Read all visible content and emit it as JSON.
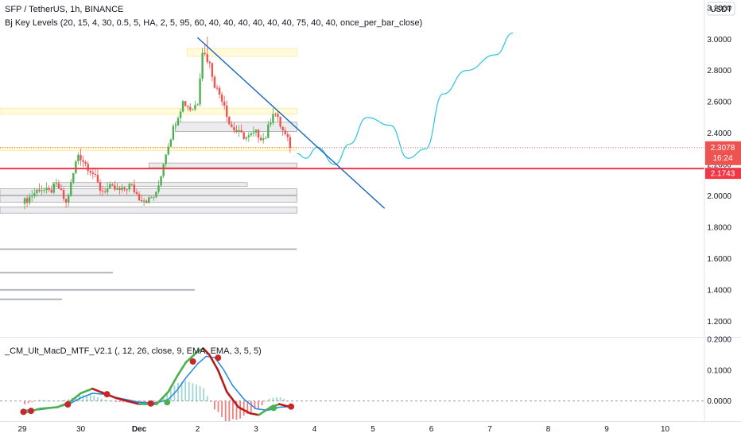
{
  "header": {
    "symbol_line": "SFP / TetherUS, 1h, BINANCE",
    "indicator_line": "Bj Key Levels (20, 15, 4, 30, 0.5, 5, HA, 2, 5, 95, 60, 40, 40, 40, 40, 40, 40, 75, 40, 40, once_per_bar_close)",
    "macd_label": "_CM_Ult_MacD_MTF_V2.1 (, 12, 26, close, 9, EMA, EMA, 3, 5, 5)",
    "currency": "USDT"
  },
  "colors": {
    "up": "#26a69a",
    "up_body": "#4caf50",
    "down": "#ef5350",
    "trendline": "#1565c0",
    "projection": "#26c6da",
    "key_level": "#f23645",
    "macd_fast": "#4caf50",
    "macd_slow": "#1e88e5",
    "macd_down": "#b71c1c"
  },
  "chart_data": [
    {
      "type": "line",
      "panel": "price",
      "y_ticks": [
        "3.2000",
        "3.0000",
        "2.8000",
        "2.6000",
        "2.4000",
        "2.2000",
        "2.0000",
        "1.8000",
        "1.6000",
        "1.4000",
        "1.2000"
      ],
      "y_tick_values": [
        3.2,
        3.0,
        2.8,
        2.6,
        2.4,
        2.2,
        2.0,
        1.8,
        1.6,
        1.4,
        1.2
      ],
      "ylim": [
        1.1,
        3.25
      ],
      "x_ticks": [
        "29",
        "30",
        "Dec",
        "2",
        "3",
        "4",
        "5",
        "6",
        "7",
        "8",
        "9",
        "10"
      ],
      "x_tick_days": [
        0,
        1,
        2,
        3,
        4,
        5,
        6,
        7,
        8,
        9,
        10,
        11
      ],
      "last_price": "2.3078",
      "last_price_value": 2.3078,
      "countdown": "16:24",
      "key_level_price": "2.1743",
      "key_level_value": 2.1743,
      "close_path": [
        {
          "d": 0.0,
          "p": 1.95
        },
        {
          "d": 0.15,
          "p": 2.0
        },
        {
          "d": 0.3,
          "p": 2.05
        },
        {
          "d": 0.45,
          "p": 2.02
        },
        {
          "d": 0.6,
          "p": 2.07
        },
        {
          "d": 0.75,
          "p": 1.95
        },
        {
          "d": 0.85,
          "p": 2.1
        },
        {
          "d": 0.95,
          "p": 2.27
        },
        {
          "d": 1.05,
          "p": 2.22
        },
        {
          "d": 1.2,
          "p": 2.15
        },
        {
          "d": 1.35,
          "p": 2.03
        },
        {
          "d": 1.5,
          "p": 2.05
        },
        {
          "d": 1.7,
          "p": 2.03
        },
        {
          "d": 1.85,
          "p": 2.07
        },
        {
          "d": 2.0,
          "p": 1.99
        },
        {
          "d": 2.15,
          "p": 1.97
        },
        {
          "d": 2.3,
          "p": 2.01
        },
        {
          "d": 2.45,
          "p": 2.27
        },
        {
          "d": 2.6,
          "p": 2.45
        },
        {
          "d": 2.75,
          "p": 2.6
        },
        {
          "d": 2.9,
          "p": 2.55
        },
        {
          "d": 3.0,
          "p": 2.6
        },
        {
          "d": 3.08,
          "p": 2.93
        },
        {
          "d": 3.2,
          "p": 2.85
        },
        {
          "d": 3.3,
          "p": 2.7
        },
        {
          "d": 3.45,
          "p": 2.6
        },
        {
          "d": 3.55,
          "p": 2.45
        },
        {
          "d": 3.7,
          "p": 2.4
        },
        {
          "d": 3.85,
          "p": 2.37
        },
        {
          "d": 4.0,
          "p": 2.4
        },
        {
          "d": 4.15,
          "p": 2.36
        },
        {
          "d": 4.3,
          "p": 2.55
        },
        {
          "d": 4.45,
          "p": 2.42
        },
        {
          "d": 4.6,
          "p": 2.31
        }
      ],
      "projection_path": [
        {
          "d": 4.7,
          "p": 2.27
        },
        {
          "d": 4.85,
          "p": 2.24
        },
        {
          "d": 5.05,
          "p": 2.31
        },
        {
          "d": 5.35,
          "p": 2.2
        },
        {
          "d": 5.6,
          "p": 2.33
        },
        {
          "d": 5.9,
          "p": 2.5
        },
        {
          "d": 6.3,
          "p": 2.45
        },
        {
          "d": 6.6,
          "p": 2.24
        },
        {
          "d": 6.9,
          "p": 2.3
        },
        {
          "d": 7.2,
          "p": 2.65
        },
        {
          "d": 7.6,
          "p": 2.8
        },
        {
          "d": 8.1,
          "p": 2.9
        },
        {
          "d": 8.4,
          "p": 3.04
        }
      ],
      "trendline": [
        {
          "d": 3.0,
          "p": 3.01
        },
        {
          "d": 6.2,
          "p": 1.92
        }
      ],
      "key_level_zones": [
        {
          "from": 3.2,
          "to": 4.7,
          "p_low": 2.89,
          "p_high": 2.94,
          "kind": "resistance"
        },
        {
          "from": 0.0,
          "to": 4.7,
          "p_low": 2.52,
          "p_high": 2.56,
          "kind": "resistance"
        },
        {
          "from": 3.0,
          "to": 4.7,
          "p_low": 2.41,
          "p_high": 2.47,
          "kind": "support"
        },
        {
          "from": 0.0,
          "to": 4.7,
          "p_low": 2.29,
          "p_high": 2.31,
          "kind": "resistance"
        },
        {
          "from": 2.55,
          "to": 4.7,
          "p_low": 2.18,
          "p_high": 2.21,
          "kind": "support"
        },
        {
          "from": 0.9,
          "to": 3.85,
          "p_low": 2.06,
          "p_high": 2.085,
          "kind": "support"
        },
        {
          "from": 0.0,
          "to": 4.7,
          "p_low": 2.005,
          "p_high": 2.045,
          "kind": "support"
        },
        {
          "from": 0.0,
          "to": 4.7,
          "p_low": 1.96,
          "p_high": 2.0,
          "kind": "support"
        },
        {
          "from": 0.0,
          "to": 4.7,
          "p_low": 1.89,
          "p_high": 1.93,
          "kind": "support"
        },
        {
          "from": 0.0,
          "to": 4.7,
          "p_low": 1.655,
          "p_high": 1.665,
          "kind": "line"
        },
        {
          "from": 0.0,
          "to": 1.55,
          "p_low": 1.505,
          "p_high": 1.515,
          "kind": "line"
        },
        {
          "from": 0.0,
          "to": 2.95,
          "p_low": 1.395,
          "p_high": 1.405,
          "kind": "line"
        },
        {
          "from": 0.0,
          "to": 0.68,
          "p_low": 1.335,
          "p_high": 1.345,
          "kind": "line"
        }
      ]
    },
    {
      "type": "line",
      "panel": "macd",
      "y_ticks": [
        "0.2000",
        "0.1000",
        "0.0000"
      ],
      "y_tick_values": [
        0.2,
        0.1,
        0.0
      ],
      "ylim": [
        -0.065,
        0.205
      ],
      "macd": [
        {
          "d": 0.0,
          "v": -0.04
        },
        {
          "d": 0.3,
          "v": -0.025
        },
        {
          "d": 0.6,
          "v": -0.02
        },
        {
          "d": 0.8,
          "v": -0.005
        },
        {
          "d": 1.0,
          "v": 0.025
        },
        {
          "d": 1.2,
          "v": 0.04
        },
        {
          "d": 1.4,
          "v": 0.025
        },
        {
          "d": 1.6,
          "v": 0.01
        },
        {
          "d": 1.8,
          "v": 0.0
        },
        {
          "d": 2.0,
          "v": -0.01
        },
        {
          "d": 2.3,
          "v": -0.01
        },
        {
          "d": 2.5,
          "v": 0.03
        },
        {
          "d": 2.65,
          "v": 0.08
        },
        {
          "d": 2.8,
          "v": 0.125
        },
        {
          "d": 3.0,
          "v": 0.16
        },
        {
          "d": 3.1,
          "v": 0.17
        },
        {
          "d": 3.2,
          "v": 0.15
        },
        {
          "d": 3.35,
          "v": 0.1
        },
        {
          "d": 3.5,
          "v": 0.03
        },
        {
          "d": 3.7,
          "v": -0.02
        },
        {
          "d": 3.9,
          "v": -0.04
        },
        {
          "d": 4.05,
          "v": -0.045
        },
        {
          "d": 4.25,
          "v": -0.02
        },
        {
          "d": 4.4,
          "v": -0.01
        },
        {
          "d": 4.6,
          "v": -0.02
        }
      ],
      "signal": [
        {
          "d": 0.0,
          "v": -0.03
        },
        {
          "d": 0.3,
          "v": -0.028
        },
        {
          "d": 0.6,
          "v": -0.02
        },
        {
          "d": 0.8,
          "v": -0.01
        },
        {
          "d": 1.0,
          "v": 0.01
        },
        {
          "d": 1.2,
          "v": 0.025
        },
        {
          "d": 1.4,
          "v": 0.022
        },
        {
          "d": 1.6,
          "v": 0.012
        },
        {
          "d": 1.8,
          "v": 0.004
        },
        {
          "d": 2.0,
          "v": -0.004
        },
        {
          "d": 2.3,
          "v": -0.006
        },
        {
          "d": 2.5,
          "v": 0.005
        },
        {
          "d": 2.65,
          "v": 0.035
        },
        {
          "d": 2.8,
          "v": 0.075
        },
        {
          "d": 3.0,
          "v": 0.12
        },
        {
          "d": 3.15,
          "v": 0.145
        },
        {
          "d": 3.3,
          "v": 0.14
        },
        {
          "d": 3.45,
          "v": 0.1
        },
        {
          "d": 3.6,
          "v": 0.05
        },
        {
          "d": 3.8,
          "v": 0.005
        },
        {
          "d": 4.0,
          "v": -0.025
        },
        {
          "d": 4.2,
          "v": -0.03
        },
        {
          "d": 4.4,
          "v": -0.02
        },
        {
          "d": 4.6,
          "v": -0.018
        }
      ],
      "cross_points": [
        {
          "d": 0.02,
          "v": -0.035
        },
        {
          "d": 0.15,
          "v": -0.032
        },
        {
          "d": 0.78,
          "v": -0.011
        },
        {
          "d": 1.45,
          "v": 0.022
        },
        {
          "d": 2.2,
          "v": -0.008
        },
        {
          "d": 2.48,
          "v": -0.004
        },
        {
          "d": 2.92,
          "v": 0.128
        },
        {
          "d": 3.35,
          "v": 0.14
        },
        {
          "d": 4.3,
          "v": -0.022
        },
        {
          "d": 4.6,
          "v": -0.018
        }
      ]
    }
  ]
}
